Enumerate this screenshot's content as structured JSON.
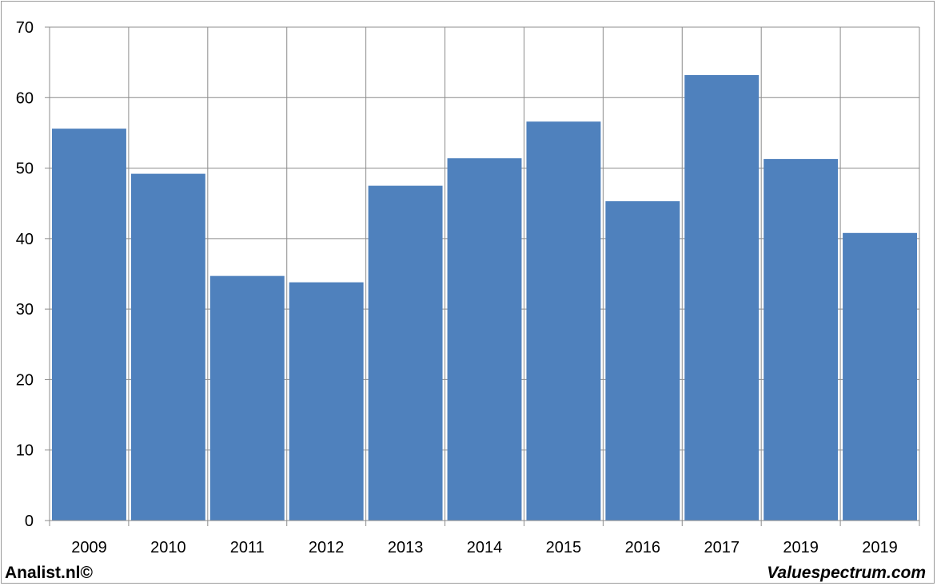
{
  "chart_data": {
    "type": "bar",
    "title": "",
    "xlabel": "",
    "ylabel": "",
    "categories": [
      "2009",
      "2010",
      "2011",
      "2012",
      "2013",
      "2014",
      "2015",
      "2016",
      "2017",
      "2019",
      "2019"
    ],
    "values": [
      55.6,
      49.2,
      34.7,
      33.8,
      47.5,
      51.4,
      56.6,
      45.3,
      63.2,
      51.3,
      40.8
    ],
    "ylim": [
      0,
      70
    ],
    "yticks": [
      0,
      10,
      20,
      30,
      40,
      50,
      60,
      70
    ],
    "grid": true,
    "bar_color": "#4f81bd",
    "grid_color": "#8c8c8c"
  },
  "footer": {
    "left": "Analist.nl©",
    "right": "Valuespectrum.com"
  }
}
